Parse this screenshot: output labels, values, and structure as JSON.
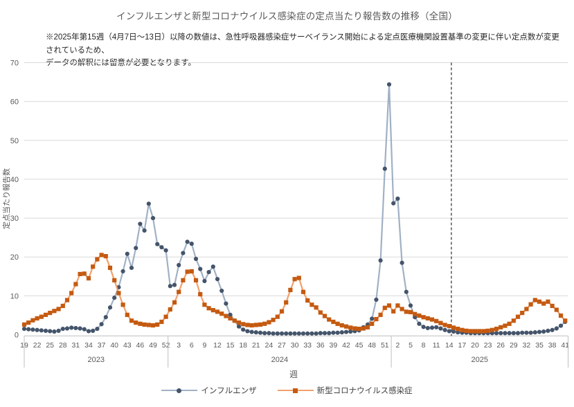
{
  "chart_data": {
    "type": "line",
    "title": "インフルエンザと新型コロナウイルス感染症の定点当たり報告数の推移（全国）",
    "note_lines": [
      "※2025年第15週（4月7日～13日）以降の数値は、急性呼吸器感染症サーベイランス開始による定点医療機関設置基準の変更に伴い定点数が変更されているため、",
      "データの解釈には留意が必要となります。"
    ],
    "ylabel": "定点当たり報告数",
    "xlabel": "週",
    "ylim": [
      0,
      70
    ],
    "ytick_step": 10,
    "y_ticks": [
      "0",
      "10",
      "20",
      "30",
      "40",
      "50",
      "60",
      "70"
    ],
    "grid": "horizontal",
    "legend_position": "bottom",
    "x_tick_interval": 3,
    "x_groups": [
      {
        "year": "2023",
        "start_week": 19,
        "end_week": 52
      },
      {
        "year": "2024",
        "start_week": 1,
        "end_week": 52
      },
      {
        "year": "2025",
        "start_week": 1,
        "end_week": 41
      }
    ],
    "reference_line": {
      "style": "dashed",
      "color": "#000000",
      "position": {
        "year": "2025",
        "week": 14.5
      }
    },
    "series": [
      {
        "name": "インフルエンザ",
        "marker": "circle",
        "line_color": "#a0b1c5",
        "marker_color": "#44546a",
        "values": [
          1.5,
          1.4,
          1.3,
          1.2,
          1.1,
          1.0,
          0.9,
          0.8,
          1.0,
          1.5,
          1.6,
          1.8,
          1.7,
          1.6,
          1.4,
          0.9,
          1.0,
          1.5,
          2.7,
          4.5,
          7.0,
          9.5,
          12.2,
          16.3,
          20.8,
          17.2,
          22.3,
          28.5,
          26.8,
          33.7,
          30.0,
          23.3,
          22.5,
          21.7,
          12.5,
          12.8,
          17.9,
          21.0,
          23.9,
          23.4,
          19.5,
          16.9,
          13.8,
          16.1,
          17.5,
          14.3,
          11.3,
          8.0,
          5.1,
          3.6,
          2.1,
          1.3,
          0.9,
          0.7,
          0.6,
          0.5,
          0.4,
          0.4,
          0.3,
          0.3,
          0.3,
          0.3,
          0.3,
          0.3,
          0.3,
          0.3,
          0.3,
          0.3,
          0.3,
          0.4,
          0.4,
          0.4,
          0.5,
          0.5,
          0.6,
          0.7,
          0.8,
          0.9,
          1.1,
          1.9,
          2.6,
          4.1,
          9.0,
          19.1,
          42.7,
          64.4,
          33.8,
          35.0,
          18.5,
          11.0,
          7.5,
          4.5,
          2.8,
          2.0,
          1.7,
          1.8,
          1.9,
          1.6,
          1.2,
          0.9,
          0.8,
          0.6,
          0.5,
          0.5,
          0.4,
          0.4,
          0.4,
          0.4,
          0.4,
          0.4,
          0.4,
          0.4,
          0.4,
          0.4,
          0.4,
          0.4,
          0.5,
          0.5,
          0.5,
          0.6,
          0.7,
          0.8,
          1.0,
          1.2,
          1.6,
          2.3,
          3.3
        ]
      },
      {
        "name": "新型コロナウイルス感染症",
        "marker": "square",
        "line_color": "#f2a06a",
        "marker_color": "#c45a11",
        "values": [
          2.6,
          3.1,
          3.7,
          4.2,
          4.6,
          5.1,
          5.6,
          6.1,
          6.6,
          7.4,
          8.9,
          10.7,
          13.0,
          15.6,
          15.7,
          14.5,
          17.5,
          19.4,
          20.5,
          20.2,
          17.2,
          14.0,
          10.7,
          7.7,
          5.1,
          3.6,
          3.1,
          2.8,
          2.6,
          2.5,
          2.4,
          2.6,
          3.3,
          4.6,
          6.5,
          8.3,
          11.0,
          14.0,
          16.2,
          16.3,
          14.0,
          10.4,
          7.7,
          6.8,
          6.3,
          5.9,
          5.4,
          4.8,
          4.2,
          3.6,
          3.1,
          2.7,
          2.5,
          2.4,
          2.5,
          2.6,
          2.8,
          3.2,
          3.8,
          4.6,
          6.0,
          8.3,
          11.5,
          14.3,
          14.6,
          11.0,
          8.8,
          7.7,
          7.0,
          5.7,
          4.8,
          3.9,
          3.3,
          2.8,
          2.4,
          2.1,
          1.8,
          1.6,
          1.5,
          1.6,
          1.9,
          2.8,
          4.0,
          5.1,
          6.9,
          7.5,
          6.0,
          7.5,
          6.6,
          5.9,
          5.8,
          5.3,
          4.9,
          4.5,
          4.2,
          3.9,
          3.5,
          3.0,
          2.5,
          2.2,
          1.8,
          1.5,
          1.2,
          1.0,
          0.9,
          0.9,
          0.9,
          0.9,
          1.0,
          1.2,
          1.5,
          1.9,
          2.3,
          2.8,
          3.6,
          4.6,
          5.6,
          6.6,
          7.8,
          8.9,
          8.5,
          8.0,
          8.5,
          7.4,
          6.4,
          4.9,
          3.6
        ]
      }
    ]
  }
}
